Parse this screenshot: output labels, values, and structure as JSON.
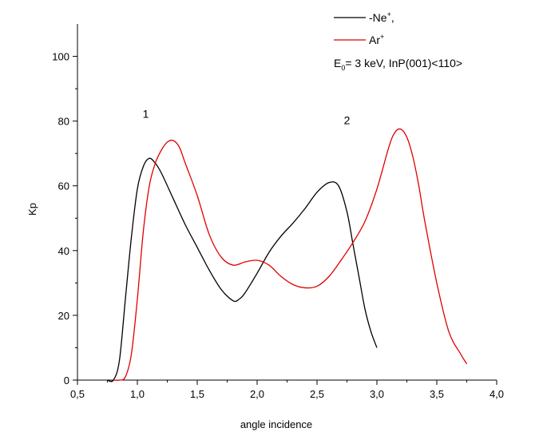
{
  "chart_data": {
    "type": "line",
    "title": "",
    "xlabel": "angle incidence",
    "ylabel": "Kp",
    "xlim": [
      0.5,
      4.0
    ],
    "ylim": [
      0,
      110
    ],
    "xticks": [
      0.5,
      1.0,
      1.5,
      2.0,
      2.5,
      3.0,
      3.5,
      4.0
    ],
    "xtick_labels": [
      "0,5",
      "1,0",
      "1,5",
      "2,0",
      "2,5",
      "3,0",
      "3,5",
      "4,0"
    ],
    "yticks": [
      0,
      20,
      40,
      60,
      80,
      100
    ],
    "ytick_labels": [
      "0",
      "20",
      "40",
      "60",
      "80",
      "100"
    ],
    "grid": false,
    "legend_placement": "top-right",
    "legend": {
      "ne_base": "-Ne",
      "ne_sup": "+",
      "ne_suffix": ",",
      "ar_base": "Ar",
      "ar_sup": "+",
      "cond_prefix": "E",
      "cond_sub": "0",
      "cond_suffix": "= 3 keV, InP(001)<110>"
    },
    "annotations": [
      {
        "text": "1",
        "x": 1.07,
        "y": 81
      },
      {
        "text": "2",
        "x": 2.75,
        "y": 79
      }
    ],
    "series": [
      {
        "name": "-Ne+,",
        "color": "#000000",
        "x": [
          0.75,
          0.8,
          0.85,
          0.9,
          0.95,
          1.0,
          1.05,
          1.1,
          1.15,
          1.2,
          1.3,
          1.4,
          1.5,
          1.6,
          1.7,
          1.8,
          1.85,
          1.9,
          2.0,
          2.1,
          2.2,
          2.3,
          2.4,
          2.5,
          2.6,
          2.68,
          2.75,
          2.8,
          2.85,
          2.9,
          2.95,
          3.0
        ],
        "y": [
          0,
          0,
          6,
          25,
          44,
          59,
          66,
          68.5,
          67,
          64,
          56,
          48,
          41,
          34,
          28,
          24.5,
          25,
          27,
          33,
          39.5,
          44.5,
          48.5,
          53,
          58,
          61,
          60,
          52,
          42,
          32,
          22,
          15,
          10
        ]
      },
      {
        "name": "Ar+",
        "color": "#e00000",
        "x": [
          0.8,
          0.85,
          0.9,
          0.95,
          1.0,
          1.05,
          1.1,
          1.15,
          1.2,
          1.25,
          1.3,
          1.35,
          1.4,
          1.5,
          1.6,
          1.7,
          1.8,
          1.9,
          2.0,
          2.1,
          2.2,
          2.3,
          2.4,
          2.5,
          2.6,
          2.7,
          2.8,
          2.9,
          3.0,
          3.1,
          3.15,
          3.2,
          3.25,
          3.3,
          3.35,
          3.4,
          3.5,
          3.6,
          3.7,
          3.75
        ],
        "y": [
          0,
          0,
          1,
          8,
          25,
          46,
          60,
          67,
          71,
          73.5,
          74,
          72,
          67,
          57,
          45,
          38,
          35.5,
          36.5,
          37,
          35.5,
          32,
          29.5,
          28.5,
          29,
          32,
          37,
          42.5,
          49,
          59,
          72,
          76.5,
          77.5,
          75,
          69,
          60,
          49,
          30,
          15,
          8,
          5
        ]
      }
    ]
  }
}
